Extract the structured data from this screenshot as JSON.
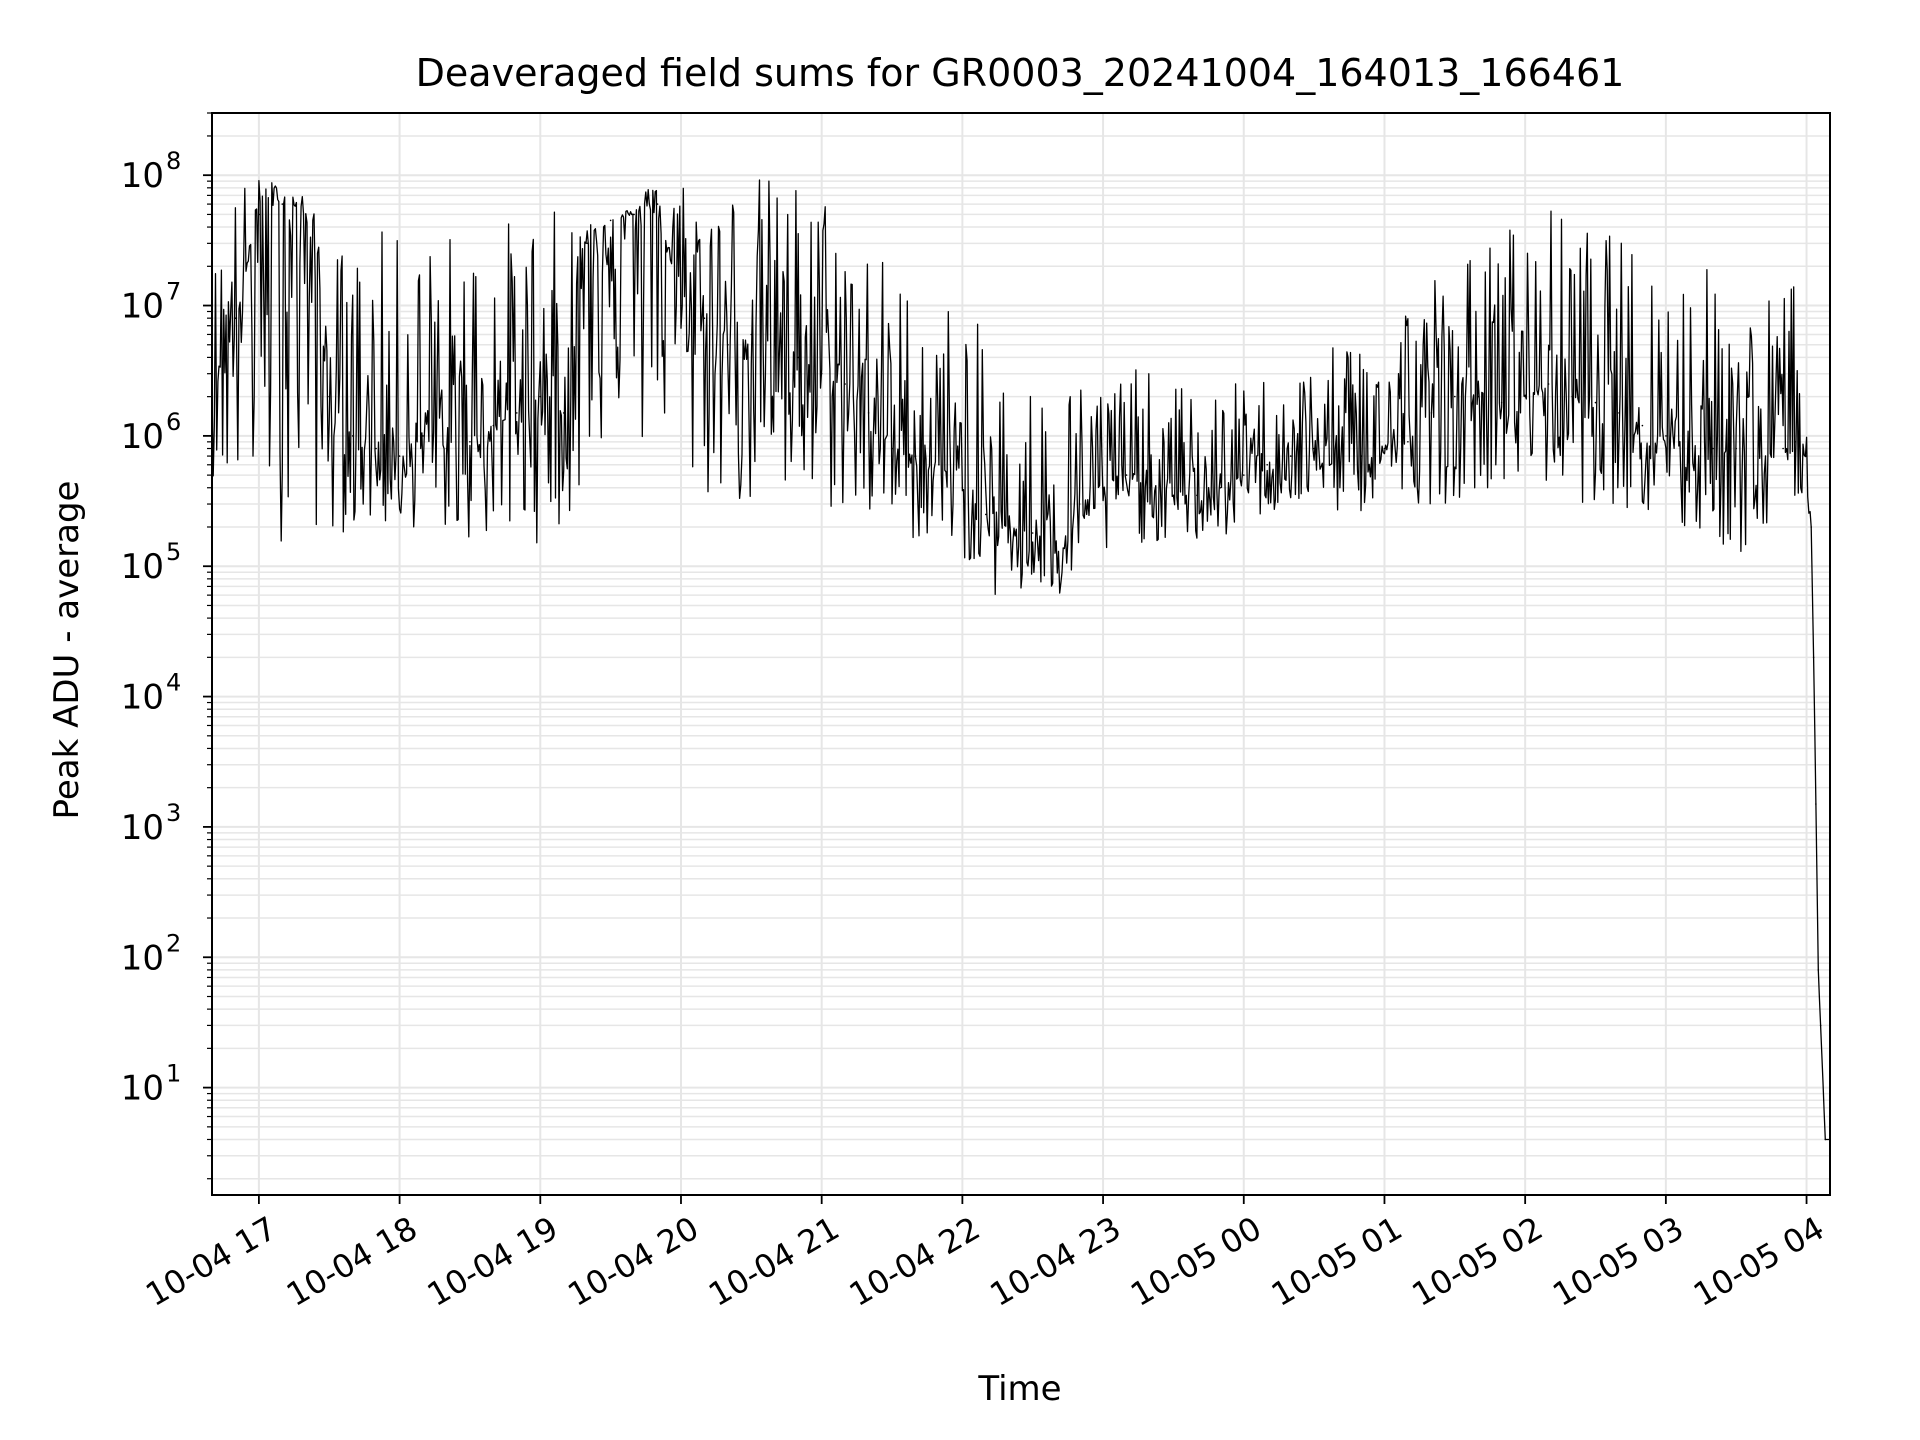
{
  "chart_data": {
    "type": "line",
    "title": "Deaveraged field sums for GR0003_20241004_164013_166461",
    "xlabel": "Time",
    "ylabel": "Peak ADU - average",
    "yscale": "log",
    "ylim": [
      1.5,
      300000000
    ],
    "xlim": [
      "2024-10-04 16:40",
      "2024-10-05 04:10"
    ],
    "grid": "on (major and minor)",
    "line_color": "#000000",
    "grid_color": "#e6e6e6",
    "x_ticks": [
      {
        "value": "2024-10-04 17:00",
        "label": "10-04 17"
      },
      {
        "value": "2024-10-04 18:00",
        "label": "10-04 18"
      },
      {
        "value": "2024-10-04 19:00",
        "label": "10-04 19"
      },
      {
        "value": "2024-10-04 20:00",
        "label": "10-04 20"
      },
      {
        "value": "2024-10-04 21:00",
        "label": "10-04 21"
      },
      {
        "value": "2024-10-04 22:00",
        "label": "10-04 22"
      },
      {
        "value": "2024-10-04 23:00",
        "label": "10-04 23"
      },
      {
        "value": "2024-10-05 00:00",
        "label": "10-05 00"
      },
      {
        "value": "2024-10-05 01:00",
        "label": "10-05 01"
      },
      {
        "value": "2024-10-05 02:00",
        "label": "10-05 02"
      },
      {
        "value": "2024-10-05 03:00",
        "label": "10-05 03"
      },
      {
        "value": "2024-10-05 04:00",
        "label": "10-05 04"
      }
    ],
    "y_ticks": [
      {
        "value": 10,
        "base": "10",
        "exp": "1"
      },
      {
        "value": 100,
        "base": "10",
        "exp": "2"
      },
      {
        "value": 1000,
        "base": "10",
        "exp": "3"
      },
      {
        "value": 10000,
        "base": "10",
        "exp": "4"
      },
      {
        "value": 100000,
        "base": "10",
        "exp": "5"
      },
      {
        "value": 1000000,
        "base": "10",
        "exp": "6"
      },
      {
        "value": 10000000,
        "base": "10",
        "exp": "7"
      },
      {
        "value": 100000000,
        "base": "10",
        "exp": "8"
      }
    ],
    "series": [
      {
        "x": [
          "2024-10-04 16:40",
          "2024-10-04 16:50",
          "2024-10-04 17:00",
          "2024-10-04 17:10",
          "2024-10-04 17:20",
          "2024-10-04 17:30",
          "2024-10-04 17:40",
          "2024-10-04 17:50",
          "2024-10-04 18:00",
          "2024-10-04 18:10",
          "2024-10-04 18:20",
          "2024-10-04 18:30",
          "2024-10-04 18:40",
          "2024-10-04 18:50",
          "2024-10-04 19:00",
          "2024-10-04 19:10",
          "2024-10-04 19:20",
          "2024-10-04 19:30",
          "2024-10-04 19:40",
          "2024-10-04 19:50",
          "2024-10-04 20:00",
          "2024-10-04 20:10",
          "2024-10-04 20:20",
          "2024-10-04 20:30",
          "2024-10-04 20:40",
          "2024-10-04 20:50",
          "2024-10-04 21:00",
          "2024-10-04 21:10",
          "2024-10-04 21:20",
          "2024-10-04 21:30",
          "2024-10-04 21:40",
          "2024-10-04 21:50",
          "2024-10-04 22:00",
          "2024-10-04 22:10",
          "2024-10-04 22:20",
          "2024-10-04 22:30",
          "2024-10-04 22:40",
          "2024-10-04 22:50",
          "2024-10-04 23:00",
          "2024-10-04 23:10",
          "2024-10-04 23:20",
          "2024-10-04 23:30",
          "2024-10-04 23:40",
          "2024-10-04 23:50",
          "2024-10-05 00:00",
          "2024-10-05 00:10",
          "2024-10-05 00:20",
          "2024-10-05 00:30",
          "2024-10-05 00:40",
          "2024-10-05 00:50",
          "2024-10-05 01:00",
          "2024-10-05 01:10",
          "2024-10-05 01:20",
          "2024-10-05 01:30",
          "2024-10-05 01:40",
          "2024-10-05 01:50",
          "2024-10-05 02:00",
          "2024-10-05 02:10",
          "2024-10-05 02:20",
          "2024-10-05 02:30",
          "2024-10-05 02:40",
          "2024-10-05 02:50",
          "2024-10-05 03:00",
          "2024-10-05 03:10",
          "2024-10-05 03:20",
          "2024-10-05 03:30",
          "2024-10-05 03:40",
          "2024-10-05 03:50",
          "2024-10-05 03:55",
          "2024-10-05 04:00",
          "2024-10-05 04:02",
          "2024-10-05 04:03",
          "2024-10-05 04:04",
          "2024-10-05 04:05",
          "2024-10-05 04:06",
          "2024-10-05 04:08",
          "2024-10-05 04:10"
        ],
        "y": [
          3000000,
          8000000,
          50000000,
          60000000,
          50000000,
          2000000,
          1000000,
          800000,
          700000,
          1000000,
          800000,
          900000,
          1200000,
          1500000,
          2000000,
          1500000,
          30000000,
          45000000,
          50000000,
          60000000,
          10000000,
          8000000,
          5000000,
          6000000,
          5000000,
          4000000,
          3000000,
          2500000,
          1500000,
          800000,
          700000,
          600000,
          400000,
          250000,
          200000,
          180000,
          150000,
          300000,
          400000,
          500000,
          400000,
          350000,
          350000,
          400000,
          500000,
          600000,
          700000,
          800000,
          600000,
          700000,
          800000,
          900000,
          1500000,
          2000000,
          2000000,
          1800000,
          2000000,
          2500000,
          2000000,
          1800000,
          1500000,
          1200000,
          1000000,
          900000,
          800000,
          800000,
          700000,
          800000,
          900000,
          700000,
          200000,
          20000,
          1500,
          80,
          30,
          4,
          4
        ],
        "y_min": [
          500000,
          300000,
          200000,
          150000,
          200000,
          150000,
          200000,
          200000,
          180000,
          200000,
          180000,
          150000,
          150000,
          150000,
          150000,
          200000,
          300000,
          1500000,
          500000,
          1000000,
          400000,
          300000,
          300000,
          250000,
          250000,
          200000,
          250000,
          250000,
          200000,
          200000,
          150000,
          150000,
          120000,
          60000,
          50000,
          60000,
          50000,
          70000,
          100000,
          150000,
          150000,
          150000,
          150000,
          150000,
          200000,
          250000,
          250000,
          300000,
          250000,
          250000,
          300000,
          300000,
          300000,
          300000,
          400000,
          400000,
          400000,
          400000,
          300000,
          300000,
          300000,
          200000,
          200000,
          150000,
          150000,
          120000,
          100000,
          200000,
          300000,
          300000,
          200000,
          20000,
          1500,
          80,
          30,
          4,
          4
        ],
        "y_max": [
          20000000,
          90000000,
          95000000,
          90000000,
          70000000,
          30000000,
          30000000,
          40000000,
          35000000,
          38000000,
          40000000,
          45000000,
          45000000,
          50000000,
          55000000,
          55000000,
          55000000,
          55000000,
          55000000,
          110000000,
          120000000,
          110000000,
          100000000,
          110000000,
          100000000,
          100000000,
          90000000,
          60000000,
          40000000,
          20000000,
          15000000,
          10000000,
          15000000,
          5000000,
          3000000,
          3000000,
          3000000,
          3000000,
          3000000,
          4000000,
          3000000,
          2500000,
          3000000,
          2000000,
          3000000,
          3000000,
          3000000,
          4000000,
          5000000,
          10000000,
          10000000,
          15000000,
          20000000,
          20000000,
          30000000,
          40000000,
          60000000,
          60000000,
          50000000,
          40000000,
          35000000,
          30000000,
          25000000,
          25000000,
          20000000,
          15000000,
          10000000,
          20000000,
          20000000,
          1000000,
          500000,
          20000,
          1500,
          80,
          30,
          4,
          4
        ]
      }
    ]
  }
}
